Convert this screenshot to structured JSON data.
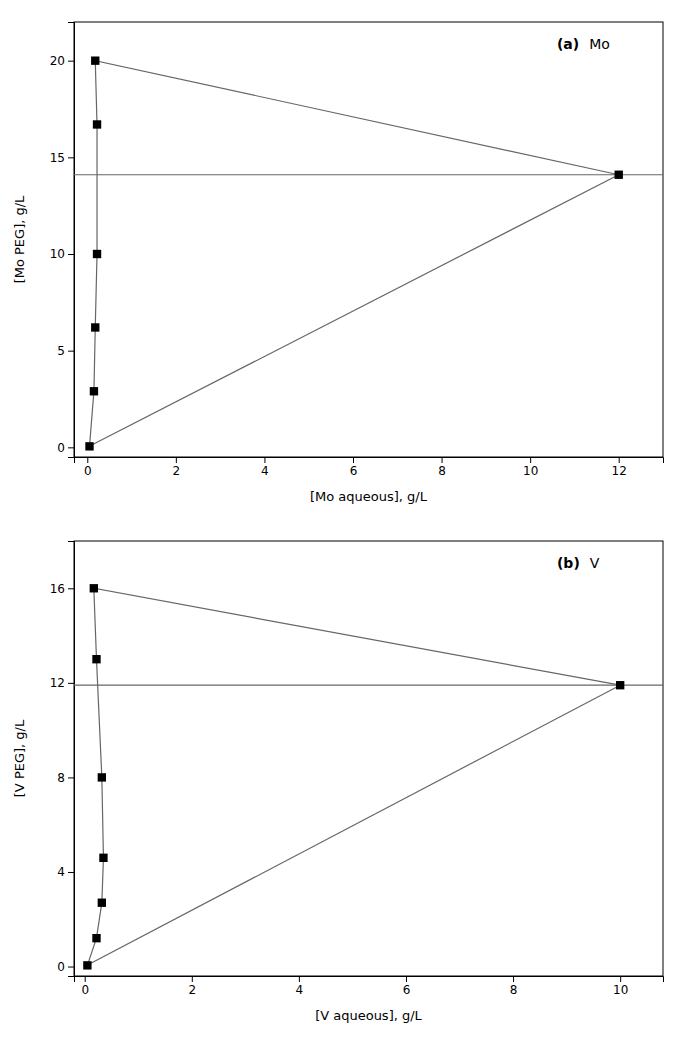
{
  "chart_data": [
    {
      "type": "scatter",
      "xlabel": "[Mo aqueous], g/L",
      "ylabel": "[Mo PEG], g/L",
      "annotations": [
        "(a)",
        "Mo"
      ],
      "xlim": [
        -0.3,
        13.0
      ],
      "ylim": [
        -0.5,
        22
      ],
      "xticks": [
        0,
        2,
        4,
        6,
        8,
        10,
        12
      ],
      "yticks": [
        0,
        5,
        10,
        15,
        20
      ],
      "grid": false,
      "series": [
        {
          "type": "line",
          "color": "#666666",
          "x": [
            0.05,
            0.15,
            0.18,
            0.22,
            0.22,
            0.18,
            12.0
          ],
          "values": [
            0.05,
            2.9,
            6.2,
            10.0,
            16.7,
            20.0,
            14.1
          ]
        },
        {
          "type": "line",
          "color": "#666666",
          "x": [
            0,
            12.0
          ],
          "values": [
            0,
            14.1
          ]
        },
        {
          "type": "hline",
          "color": "#666666",
          "values": [
            14.1
          ]
        },
        {
          "type": "scatter",
          "color": "#000000",
          "marker": "square",
          "x": [
            0.05,
            0.15,
            0.18,
            0.22,
            0.22,
            0.18,
            12.0
          ],
          "values": [
            0.05,
            2.9,
            6.2,
            10.0,
            16.7,
            20.0,
            14.1
          ]
        }
      ]
    },
    {
      "type": "scatter",
      "xlabel": "[V aqueous], g/L",
      "ylabel": "[V PEG], g/L",
      "annotations": [
        "(b)",
        "V"
      ],
      "xlim": [
        -0.2,
        10.8
      ],
      "ylim": [
        -0.4,
        18
      ],
      "xticks": [
        0,
        2,
        4,
        6,
        8,
        10
      ],
      "yticks": [
        0,
        4,
        8,
        12,
        16
      ],
      "grid": false,
      "series": [
        {
          "type": "line",
          "color": "#666666",
          "x": [
            0.05,
            0.22,
            0.32,
            0.35,
            0.32,
            0.22,
            0.17,
            10.0
          ],
          "values": [
            0.05,
            1.2,
            2.7,
            4.6,
            8.0,
            13.0,
            16.0,
            11.9
          ]
        },
        {
          "type": "line",
          "color": "#666666",
          "x": [
            0,
            10.0
          ],
          "values": [
            0,
            11.9
          ]
        },
        {
          "type": "hline",
          "color": "#666666",
          "values": [
            11.9
          ]
        },
        {
          "type": "scatter",
          "color": "#000000",
          "marker": "square",
          "x": [
            0.05,
            0.22,
            0.32,
            0.35,
            0.32,
            0.22,
            0.17,
            10.0
          ],
          "values": [
            0.05,
            1.2,
            2.7,
            4.6,
            8.0,
            13.0,
            16.0,
            11.9
          ]
        }
      ]
    }
  ]
}
